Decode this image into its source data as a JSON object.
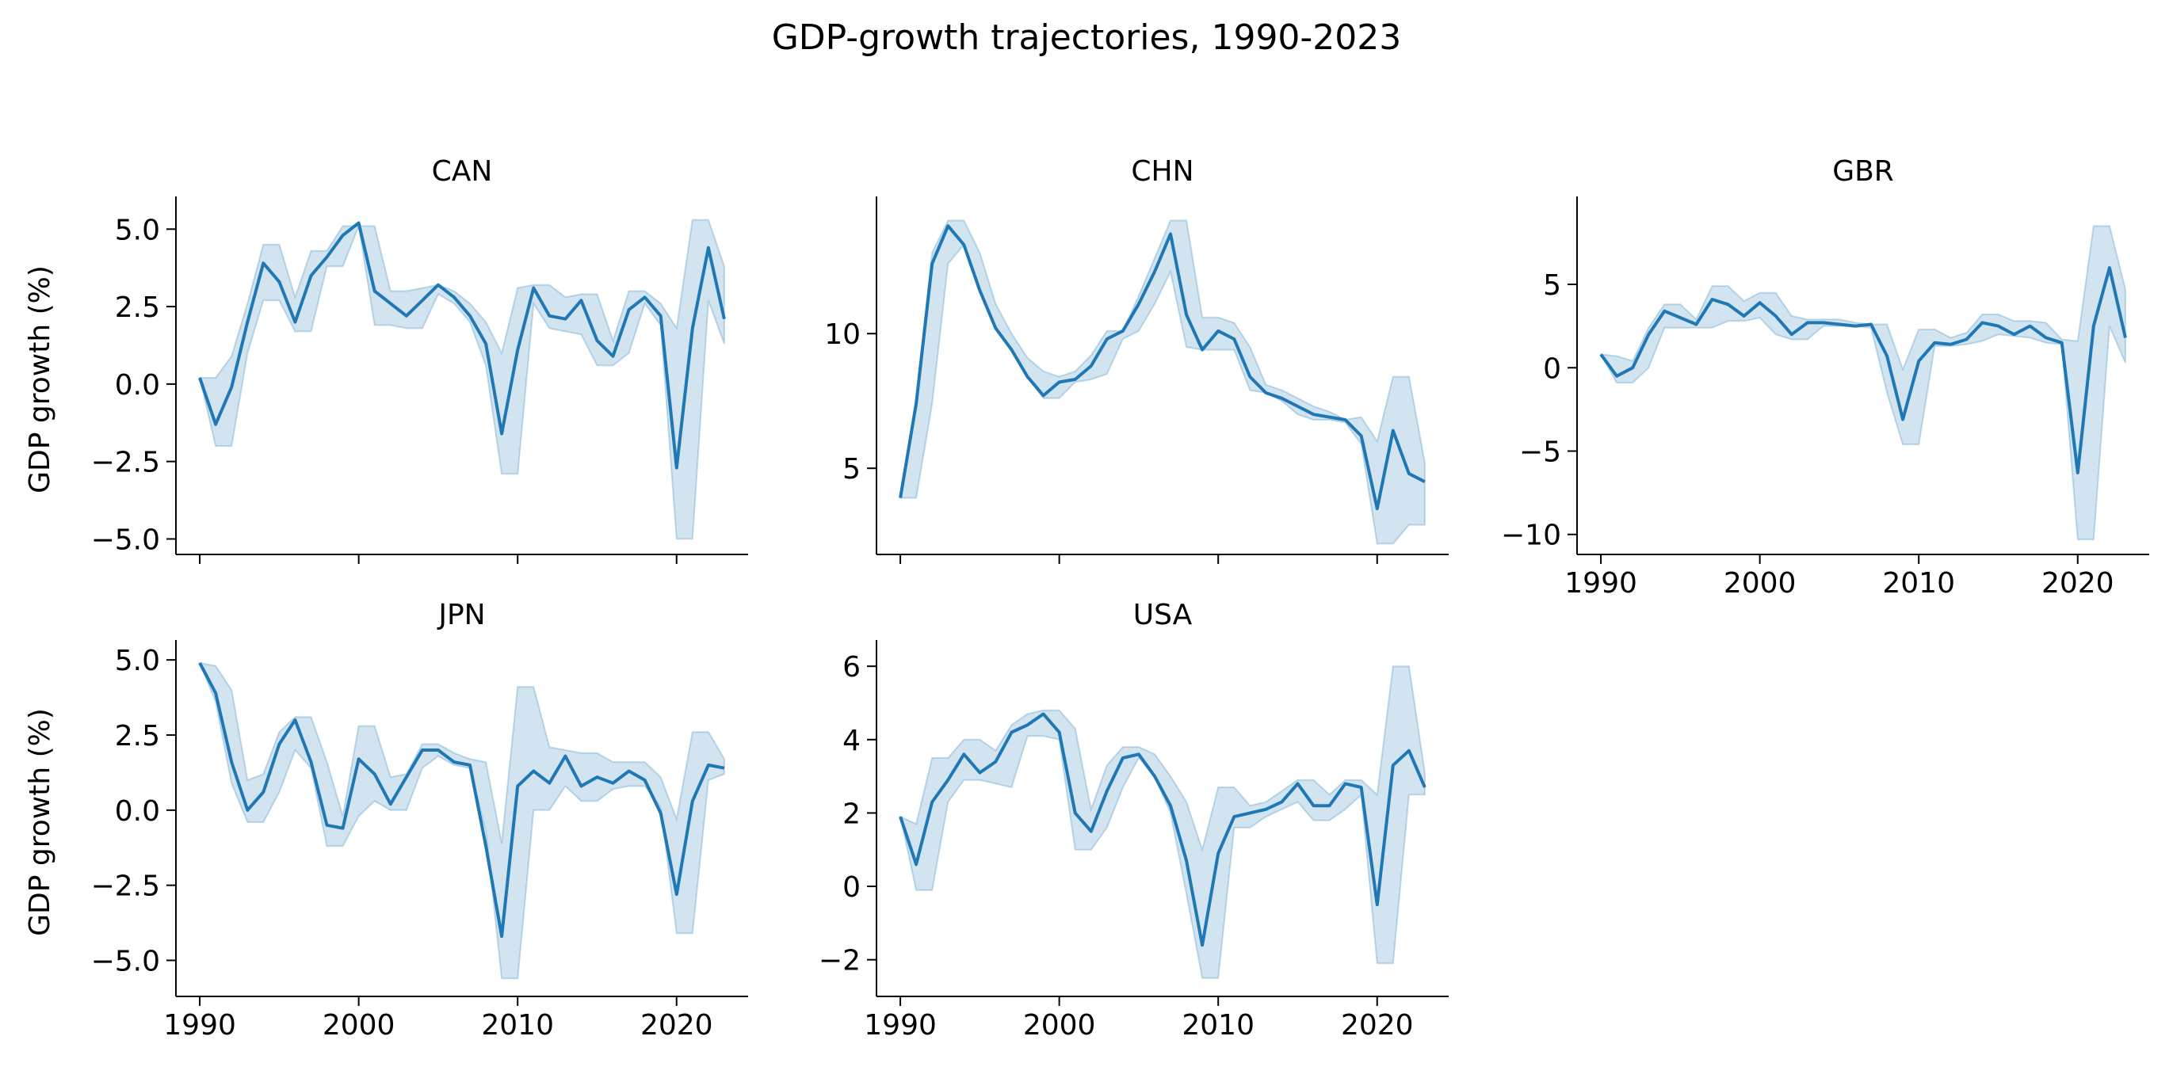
{
  "figure": {
    "title": "GDP-growth trajectories, 1990-2023",
    "ylabel": "GDP growth (%)",
    "line_color": "#1f77b4",
    "band_color": "#1f77b4",
    "band_opacity": 0.2
  },
  "chart_data": [
    {
      "type": "line",
      "title": "CAN",
      "xlabel": "",
      "ylabel": "GDP growth (%)",
      "xlim": [
        1988.5,
        2024.5
      ],
      "ylim": [
        -5.5,
        5.8
      ],
      "xticks": [
        1990,
        2000,
        2010,
        2020
      ],
      "xtick_labels_shown": false,
      "yticks": [
        -5.0,
        -2.5,
        0.0,
        2.5,
        5.0
      ],
      "ytick_labels": [
        "−5.0",
        "−2.5",
        "0.0",
        "2.5",
        "5.0"
      ],
      "grid": false,
      "x": [
        1990,
        1991,
        1992,
        1993,
        1994,
        1995,
        1996,
        1997,
        1998,
        1999,
        2000,
        2001,
        2002,
        2003,
        2004,
        2005,
        2006,
        2007,
        2008,
        2009,
        2010,
        2011,
        2012,
        2013,
        2014,
        2015,
        2016,
        2017,
        2018,
        2019,
        2020,
        2021,
        2022,
        2023
      ],
      "series": [
        {
          "values": [
            0.2,
            -1.3,
            -0.1,
            2.0,
            3.9,
            3.3,
            2.0,
            3.5,
            4.1,
            4.8,
            5.2,
            3.0,
            2.6,
            2.2,
            2.7,
            3.2,
            2.8,
            2.2,
            1.3,
            -1.6,
            1.1,
            3.1,
            2.2,
            2.1,
            2.7,
            1.4,
            0.9,
            2.4,
            2.8,
            2.2,
            -2.7,
            1.8,
            4.4,
            2.1
          ],
          "lower": [
            0.2,
            -2.0,
            -2.0,
            1.0,
            2.7,
            2.7,
            1.7,
            1.7,
            3.8,
            3.8,
            5.1,
            1.9,
            1.9,
            1.8,
            1.8,
            2.9,
            2.6,
            2.0,
            0.6,
            -2.9,
            -2.9,
            2.6,
            1.8,
            1.7,
            1.6,
            0.6,
            0.6,
            1.0,
            2.6,
            1.9,
            -5.0,
            -5.0,
            2.7,
            1.3
          ],
          "upper": [
            0.2,
            0.2,
            0.9,
            2.6,
            4.5,
            4.5,
            2.8,
            4.3,
            4.3,
            5.1,
            5.1,
            5.1,
            3.0,
            3.0,
            3.1,
            3.2,
            3.0,
            2.6,
            2.0,
            1.0,
            3.1,
            3.2,
            3.2,
            2.8,
            2.9,
            2.9,
            1.4,
            3.0,
            3.0,
            2.6,
            1.8,
            5.3,
            5.3,
            3.8
          ]
        }
      ]
    },
    {
      "type": "line",
      "title": "CHN",
      "xlabel": "",
      "ylabel": "",
      "xlim": [
        1988.5,
        2024.5
      ],
      "ylim": [
        1.8,
        14.8
      ],
      "xticks": [
        1990,
        2000,
        2010,
        2020
      ],
      "xtick_labels_shown": false,
      "yticks": [
        5,
        10
      ],
      "ytick_labels": [
        "5",
        "10"
      ],
      "grid": false,
      "x": [
        1990,
        1991,
        1992,
        1993,
        1994,
        1995,
        1996,
        1997,
        1998,
        1999,
        2000,
        2001,
        2002,
        2003,
        2004,
        2005,
        2006,
        2007,
        2008,
        2009,
        2010,
        2011,
        2012,
        2013,
        2014,
        2015,
        2016,
        2017,
        2018,
        2019,
        2020,
        2021,
        2022,
        2023
      ],
      "series": [
        {
          "values": [
            3.9,
            7.4,
            12.6,
            14.0,
            13.3,
            11.6,
            10.2,
            9.4,
            8.4,
            7.7,
            8.2,
            8.3,
            8.8,
            9.8,
            10.1,
            11.1,
            12.3,
            13.7,
            10.7,
            9.4,
            10.1,
            9.8,
            8.4,
            7.8,
            7.6,
            7.3,
            7.0,
            6.9,
            6.8,
            6.2,
            3.5,
            6.4,
            4.8,
            4.5
          ],
          "lower": [
            3.9,
            3.9,
            7.4,
            12.6,
            13.3,
            11.6,
            10.2,
            9.4,
            8.4,
            7.6,
            7.6,
            8.2,
            8.3,
            8.5,
            9.8,
            10.1,
            11.1,
            12.3,
            9.5,
            9.4,
            9.4,
            9.4,
            7.9,
            7.8,
            7.5,
            7.0,
            6.8,
            6.8,
            6.7,
            5.9,
            2.2,
            2.2,
            2.9,
            2.9
          ],
          "upper": [
            3.9,
            7.6,
            13.0,
            14.2,
            14.2,
            13.0,
            11.1,
            10.0,
            9.1,
            8.6,
            8.4,
            8.6,
            9.2,
            10.1,
            10.1,
            11.4,
            12.8,
            14.2,
            14.2,
            10.6,
            10.6,
            10.4,
            9.5,
            8.1,
            7.9,
            7.6,
            7.3,
            7.1,
            6.8,
            6.9,
            6.0,
            8.4,
            8.4,
            5.2
          ]
        }
      ]
    },
    {
      "type": "line",
      "title": "GBR",
      "xlabel": "",
      "ylabel": "",
      "xlim": [
        1988.5,
        2024.5
      ],
      "ylim": [
        -11.2,
        9.8
      ],
      "xticks": [
        1990,
        2000,
        2010,
        2020
      ],
      "xtick_labels": [
        "1990",
        "2000",
        "2010",
        "2020"
      ],
      "xtick_labels_shown": true,
      "yticks": [
        -10,
        -5,
        0,
        5
      ],
      "ytick_labels": [
        "−10",
        "−5",
        "0",
        "5"
      ],
      "grid": false,
      "x": [
        1990,
        1991,
        1992,
        1993,
        1994,
        1995,
        1996,
        1997,
        1998,
        1999,
        2000,
        2001,
        2002,
        2003,
        2004,
        2005,
        2006,
        2007,
        2008,
        2009,
        2010,
        2011,
        2012,
        2013,
        2014,
        2015,
        2016,
        2017,
        2018,
        2019,
        2020,
        2021,
        2022,
        2023
      ],
      "series": [
        {
          "values": [
            0.8,
            -0.5,
            0.0,
            2.0,
            3.4,
            3.0,
            2.6,
            4.1,
            3.8,
            3.1,
            3.9,
            3.1,
            2.0,
            2.7,
            2.7,
            2.6,
            2.5,
            2.6,
            0.7,
            -3.1,
            0.4,
            1.5,
            1.4,
            1.7,
            2.7,
            2.5,
            2.0,
            2.5,
            1.8,
            1.5,
            -6.3,
            2.5,
            6.0,
            1.8
          ],
          "lower": [
            0.8,
            -0.9,
            -0.9,
            0.0,
            2.4,
            2.4,
            2.4,
            2.4,
            2.8,
            2.8,
            3.0,
            2.0,
            1.7,
            1.7,
            2.5,
            2.5,
            2.5,
            2.4,
            -1.5,
            -4.6,
            -4.6,
            1.3,
            1.3,
            1.4,
            1.6,
            2.0,
            1.9,
            1.8,
            1.5,
            1.4,
            -10.3,
            -10.3,
            2.5,
            0.3
          ],
          "upper": [
            0.8,
            0.7,
            0.4,
            2.4,
            3.8,
            3.8,
            2.9,
            4.9,
            4.9,
            4.0,
            4.5,
            4.5,
            3.1,
            2.9,
            2.9,
            2.9,
            2.7,
            2.6,
            2.6,
            -0.1,
            2.3,
            2.3,
            1.8,
            2.1,
            3.2,
            3.2,
            2.8,
            2.8,
            2.7,
            1.7,
            1.6,
            8.5,
            8.5,
            4.7
          ]
        }
      ]
    },
    {
      "type": "line",
      "title": "JPN",
      "xlabel": "",
      "ylabel": "GDP growth (%)",
      "xlim": [
        1988.5,
        2024.5
      ],
      "ylim": [
        -6.2,
        5.4
      ],
      "xticks": [
        1990,
        2000,
        2010,
        2020
      ],
      "xtick_labels": [
        "1990",
        "2000",
        "2010",
        "2020"
      ],
      "xtick_labels_shown": true,
      "yticks": [
        -5.0,
        -2.5,
        0.0,
        2.5,
        5.0
      ],
      "ytick_labels": [
        "−5.0",
        "−2.5",
        "0.0",
        "2.5",
        "5.0"
      ],
      "grid": false,
      "x": [
        1990,
        1991,
        1992,
        1993,
        1994,
        1995,
        1996,
        1997,
        1998,
        1999,
        2000,
        2001,
        2002,
        2003,
        2004,
        2005,
        2006,
        2007,
        2008,
        2009,
        2010,
        2011,
        2012,
        2013,
        2014,
        2015,
        2016,
        2017,
        2018,
        2019,
        2020,
        2021,
        2022,
        2023
      ],
      "series": [
        {
          "values": [
            4.9,
            3.9,
            1.6,
            0.0,
            0.6,
            2.2,
            3.0,
            1.6,
            -0.5,
            -0.6,
            1.7,
            1.2,
            0.2,
            1.1,
            2.0,
            2.0,
            1.6,
            1.5,
            -1.2,
            -4.2,
            0.8,
            1.3,
            0.9,
            1.8,
            0.8,
            1.1,
            0.9,
            1.3,
            1.0,
            -0.1,
            -2.8,
            0.3,
            1.5,
            1.4
          ],
          "lower": [
            4.9,
            3.6,
            0.9,
            -0.4,
            -0.4,
            0.6,
            2.0,
            1.4,
            -1.2,
            -1.2,
            -0.2,
            0.3,
            0.0,
            0.0,
            1.4,
            1.8,
            1.5,
            1.4,
            -0.7,
            -5.6,
            -5.6,
            0.0,
            0.0,
            0.8,
            0.3,
            0.3,
            0.7,
            0.8,
            0.8,
            0.1,
            -4.1,
            -4.1,
            1.0,
            1.2
          ],
          "upper": [
            4.9,
            4.8,
            4.0,
            1.0,
            1.2,
            2.6,
            3.1,
            3.1,
            1.6,
            -0.2,
            2.8,
            2.8,
            1.1,
            1.2,
            2.2,
            2.2,
            1.9,
            1.7,
            1.6,
            -1.1,
            4.1,
            4.1,
            2.1,
            2.0,
            1.9,
            1.9,
            1.6,
            1.6,
            1.6,
            1.1,
            -0.3,
            2.6,
            2.6,
            1.7
          ]
        }
      ]
    },
    {
      "type": "line",
      "title": "USA",
      "xlabel": "",
      "ylabel": "",
      "xlim": [
        1988.5,
        2024.5
      ],
      "ylim": [
        -3.0,
        6.5
      ],
      "xticks": [
        1990,
        2000,
        2010,
        2020
      ],
      "xtick_labels": [
        "1990",
        "2000",
        "2010",
        "2020"
      ],
      "xtick_labels_shown": true,
      "yticks": [
        -2,
        0,
        2,
        4,
        6
      ],
      "ytick_labels": [
        "−2",
        "0",
        "2",
        "4",
        "6"
      ],
      "grid": false,
      "x": [
        1990,
        1991,
        1992,
        1993,
        1994,
        1995,
        1996,
        1997,
        1998,
        1999,
        2000,
        2001,
        2002,
        2003,
        2004,
        2005,
        2006,
        2007,
        2008,
        2009,
        2010,
        2011,
        2012,
        2013,
        2014,
        2015,
        2016,
        2017,
        2018,
        2019,
        2020,
        2021,
        2022,
        2023
      ],
      "series": [
        {
          "values": [
            1.9,
            0.6,
            2.3,
            2.9,
            3.6,
            3.1,
            3.4,
            4.2,
            4.4,
            4.7,
            4.2,
            2.0,
            1.5,
            2.6,
            3.5,
            3.6,
            3.0,
            2.2,
            0.7,
            -1.6,
            0.9,
            1.9,
            2.0,
            2.1,
            2.3,
            2.8,
            2.2,
            2.2,
            2.8,
            2.7,
            -0.5,
            3.3,
            3.7,
            2.7
          ],
          "lower": [
            1.9,
            -0.1,
            -0.1,
            2.3,
            2.9,
            2.9,
            2.8,
            2.7,
            4.1,
            4.1,
            4.0,
            1.0,
            1.0,
            1.6,
            2.7,
            3.5,
            3.0,
            2.0,
            -0.2,
            -2.5,
            -2.5,
            1.6,
            1.6,
            1.9,
            2.1,
            2.3,
            1.8,
            1.8,
            2.1,
            2.5,
            -2.1,
            -2.1,
            2.5,
            2.5
          ],
          "upper": [
            1.9,
            1.7,
            3.5,
            3.5,
            4.0,
            4.0,
            3.7,
            4.4,
            4.7,
            4.8,
            4.8,
            4.3,
            2.1,
            3.3,
            3.8,
            3.8,
            3.6,
            3.0,
            2.3,
            1.0,
            2.7,
            2.7,
            2.2,
            2.3,
            2.6,
            2.9,
            2.9,
            2.5,
            2.9,
            2.9,
            2.5,
            6.0,
            6.0,
            3.1
          ]
        }
      ]
    }
  ]
}
